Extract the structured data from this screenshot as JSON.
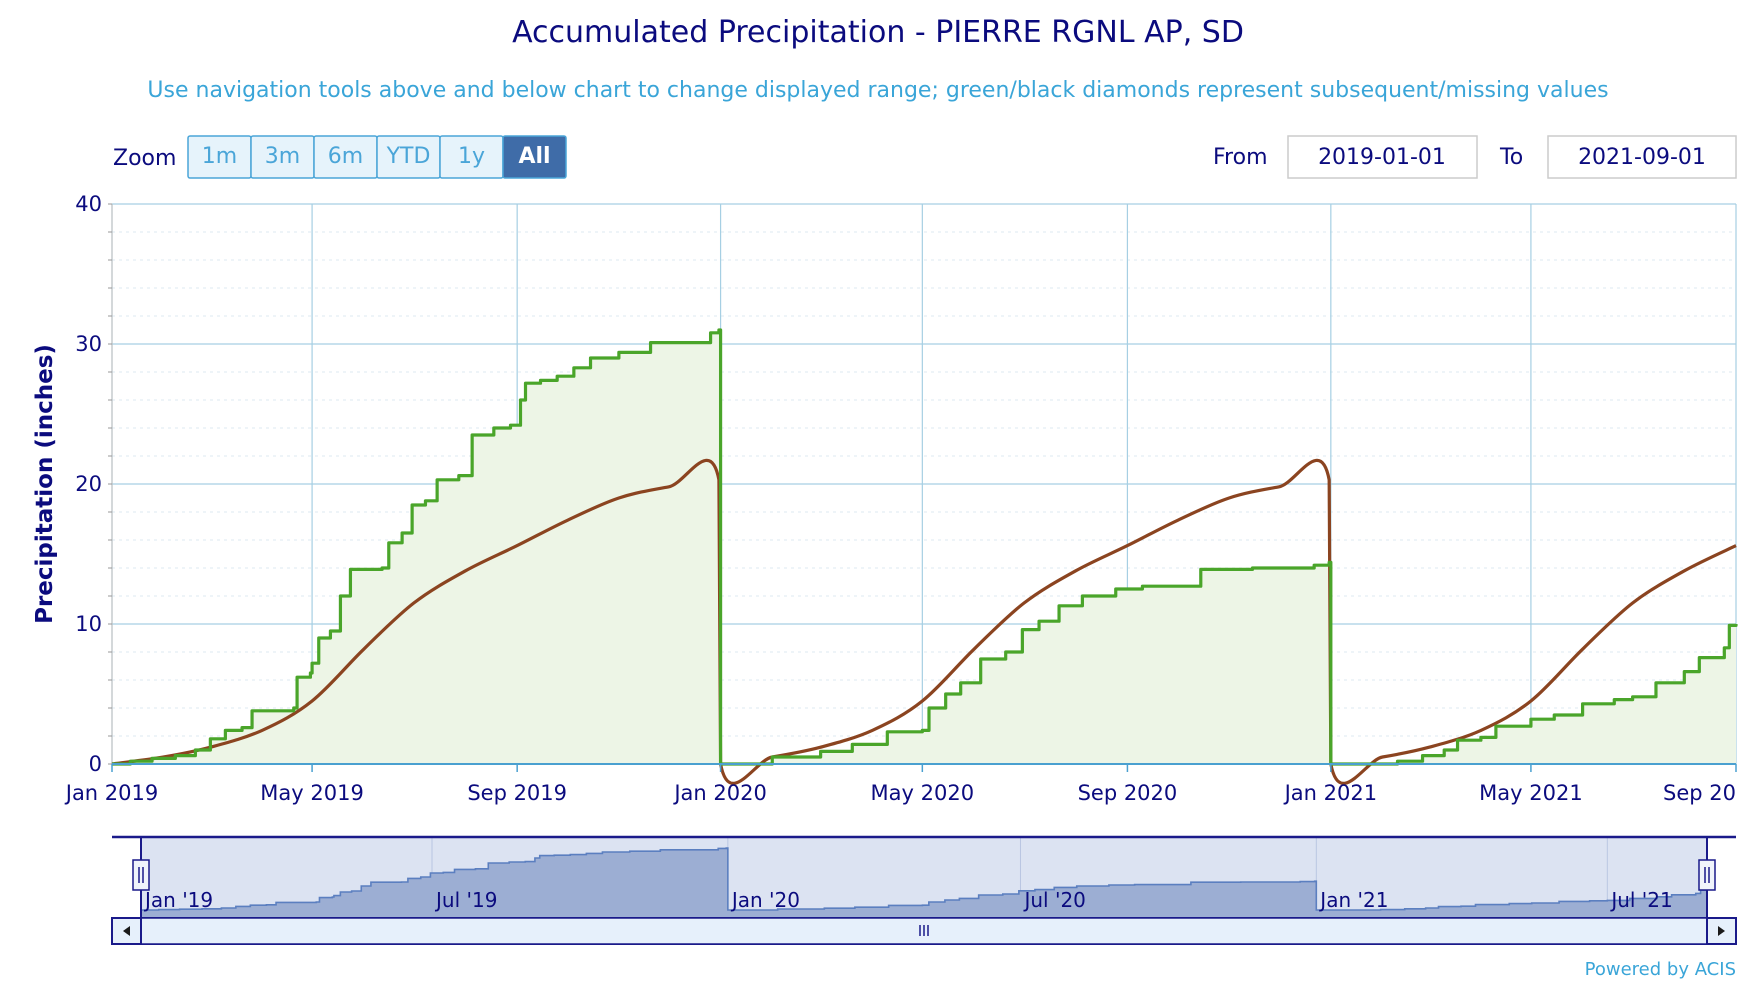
{
  "title": "Accumulated Precipitation - PIERRE RGNL AP, SD",
  "subtitle": "Use navigation tools above and below chart to change displayed range; green/black diamonds represent subsequent/missing values",
  "zoom": {
    "label": "Zoom",
    "buttons": [
      "1m",
      "3m",
      "6m",
      "YTD",
      "1y",
      "All"
    ],
    "selected": "All"
  },
  "range": {
    "from_label": "From",
    "from_value": "2019-01-01",
    "to_label": "To",
    "to_value": "2021-09-01"
  },
  "credits": "Powered by ACIS",
  "colors": {
    "title": "#0b0b7e",
    "subtitle": "#3aa5d8",
    "observed": "#4aa52a",
    "observed_fill": "#edf5e6",
    "normal": "#8b4420",
    "grid": "#a6cfe3",
    "navigator_fill": "#9caed3",
    "navigator_line": "#5b7fc0",
    "zoom_selected": "#3f6ca8"
  },
  "chart_data": {
    "type": "line",
    "title": "Accumulated Precipitation - PIERRE RGNL AP, SD",
    "ylabel": "Precipitation (inches)",
    "xlabel": "",
    "xlim": [
      "2019-01-01",
      "2021-09-01"
    ],
    "ylim": [
      0,
      40
    ],
    "y_ticks": [
      0,
      10,
      20,
      30,
      40
    ],
    "x_ticks": [
      "2019-01-01",
      "2019-05-01",
      "2019-09-01",
      "2020-01-01",
      "2020-05-01",
      "2020-09-01",
      "2021-01-01",
      "2021-05-01",
      "2021-09-01"
    ],
    "x_tick_labels": [
      "Jan 2019",
      "May 2019",
      "Sep 2019",
      "Jan 2020",
      "May 2020",
      "Sep 2020",
      "Jan 2021",
      "May 2021",
      "Sep 20"
    ],
    "grid": true,
    "series": [
      {
        "key": "observed",
        "style": "step-area",
        "points": [
          [
            "2019-01-01",
            0.0
          ],
          [
            "2019-01-12",
            0.2
          ],
          [
            "2019-01-25",
            0.4
          ],
          [
            "2019-02-08",
            0.6
          ],
          [
            "2019-02-20",
            1.0
          ],
          [
            "2019-03-01",
            1.8
          ],
          [
            "2019-03-10",
            2.4
          ],
          [
            "2019-03-20",
            2.6
          ],
          [
            "2019-03-26",
            3.8
          ],
          [
            "2019-04-20",
            4.0
          ],
          [
            "2019-04-22",
            6.2
          ],
          [
            "2019-04-30",
            6.5
          ],
          [
            "2019-05-01",
            7.2
          ],
          [
            "2019-05-05",
            9.0
          ],
          [
            "2019-05-12",
            9.5
          ],
          [
            "2019-05-18",
            12.0
          ],
          [
            "2019-05-24",
            13.9
          ],
          [
            "2019-06-12",
            14.0
          ],
          [
            "2019-06-16",
            15.8
          ],
          [
            "2019-06-24",
            16.5
          ],
          [
            "2019-06-30",
            18.5
          ],
          [
            "2019-07-08",
            18.8
          ],
          [
            "2019-07-15",
            20.3
          ],
          [
            "2019-07-28",
            20.6
          ],
          [
            "2019-08-05",
            23.5
          ],
          [
            "2019-08-18",
            24.0
          ],
          [
            "2019-08-28",
            24.2
          ],
          [
            "2019-09-03",
            26.0
          ],
          [
            "2019-09-06",
            27.2
          ],
          [
            "2019-09-15",
            27.4
          ],
          [
            "2019-09-25",
            27.7
          ],
          [
            "2019-10-05",
            28.3
          ],
          [
            "2019-10-15",
            29.0
          ],
          [
            "2019-11-01",
            29.4
          ],
          [
            "2019-11-20",
            30.1
          ],
          [
            "2019-12-26",
            30.8
          ],
          [
            "2019-12-31",
            31.0
          ],
          [
            "2020-01-01",
            0.0
          ],
          [
            "2020-02-01",
            0.5
          ],
          [
            "2020-03-01",
            0.9
          ],
          [
            "2020-03-20",
            1.4
          ],
          [
            "2020-04-10",
            2.3
          ],
          [
            "2020-05-01",
            2.4
          ],
          [
            "2020-05-05",
            4.0
          ],
          [
            "2020-05-15",
            5.0
          ],
          [
            "2020-05-24",
            5.8
          ],
          [
            "2020-06-05",
            7.5
          ],
          [
            "2020-06-20",
            8.0
          ],
          [
            "2020-06-30",
            9.6
          ],
          [
            "2020-07-10",
            10.2
          ],
          [
            "2020-07-22",
            11.3
          ],
          [
            "2020-08-05",
            12.0
          ],
          [
            "2020-08-25",
            12.5
          ],
          [
            "2020-09-10",
            12.7
          ],
          [
            "2020-10-15",
            13.9
          ],
          [
            "2020-11-15",
            14.0
          ],
          [
            "2020-12-22",
            14.2
          ],
          [
            "2020-12-31",
            14.4
          ],
          [
            "2021-01-01",
            0.0
          ],
          [
            "2021-02-10",
            0.2
          ],
          [
            "2021-02-25",
            0.6
          ],
          [
            "2021-03-10",
            1.0
          ],
          [
            "2021-03-18",
            1.7
          ],
          [
            "2021-04-01",
            1.9
          ],
          [
            "2021-04-10",
            2.7
          ],
          [
            "2021-05-01",
            3.2
          ],
          [
            "2021-05-15",
            3.5
          ],
          [
            "2021-06-01",
            4.3
          ],
          [
            "2021-06-20",
            4.6
          ],
          [
            "2021-07-01",
            4.8
          ],
          [
            "2021-07-15",
            5.8
          ],
          [
            "2021-08-01",
            6.6
          ],
          [
            "2021-08-10",
            7.6
          ],
          [
            "2021-08-25",
            8.3
          ],
          [
            "2021-08-28",
            9.9
          ],
          [
            "2021-09-01",
            10.0
          ]
        ]
      },
      {
        "key": "normal",
        "style": "line",
        "points": [
          [
            "2019-01-01",
            0.0
          ],
          [
            "2019-02-01",
            0.5
          ],
          [
            "2019-03-01",
            1.2
          ],
          [
            "2019-04-01",
            2.4
          ],
          [
            "2019-05-01",
            4.5
          ],
          [
            "2019-06-01",
            8.2
          ],
          [
            "2019-07-01",
            11.5
          ],
          [
            "2019-08-01",
            13.8
          ],
          [
            "2019-09-01",
            15.6
          ],
          [
            "2019-10-01",
            17.4
          ],
          [
            "2019-11-01",
            19.0
          ],
          [
            "2019-12-01",
            19.8
          ],
          [
            "2019-12-31",
            20.3
          ],
          [
            "2020-01-01",
            0.0
          ],
          [
            "2020-02-01",
            0.5
          ],
          [
            "2020-03-01",
            1.2
          ],
          [
            "2020-04-01",
            2.4
          ],
          [
            "2020-05-01",
            4.5
          ],
          [
            "2020-06-01",
            8.2
          ],
          [
            "2020-07-01",
            11.5
          ],
          [
            "2020-08-01",
            13.8
          ],
          [
            "2020-09-01",
            15.6
          ],
          [
            "2020-10-01",
            17.4
          ],
          [
            "2020-11-01",
            19.0
          ],
          [
            "2020-12-01",
            19.8
          ],
          [
            "2020-12-31",
            20.3
          ],
          [
            "2021-01-01",
            0.0
          ],
          [
            "2021-02-01",
            0.5
          ],
          [
            "2021-03-01",
            1.2
          ],
          [
            "2021-04-01",
            2.4
          ],
          [
            "2021-05-01",
            4.5
          ],
          [
            "2021-06-01",
            8.2
          ],
          [
            "2021-07-01",
            11.5
          ],
          [
            "2021-08-01",
            13.8
          ],
          [
            "2021-09-01",
            15.6
          ]
        ]
      }
    ]
  },
  "navigator": {
    "tick_labels": [
      "Jan '19",
      "Jul '19",
      "Jan '20",
      "Jul '20",
      "Jan '21",
      "Jul '21"
    ],
    "tick_dates": [
      "2019-01-01",
      "2019-07-01",
      "2020-01-01",
      "2020-07-01",
      "2021-01-01",
      "2021-07-01"
    ],
    "scroll_left_icon": "triangle-left",
    "scroll_right_icon": "triangle-right",
    "scroll_grip_icon": "grip-lines"
  }
}
